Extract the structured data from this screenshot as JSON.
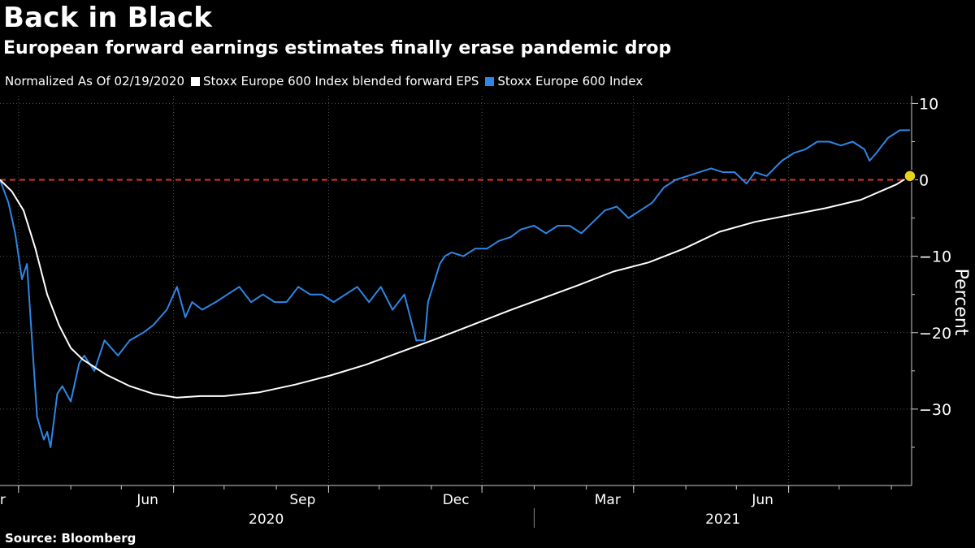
{
  "header": {
    "title": "Back in Black",
    "subtitle": "European forward earnings estimates finally erase pandemic drop"
  },
  "legend": {
    "note": "Normalized As Of 02/19/2020",
    "items": [
      {
        "label": "Stoxx Europe 600 Index blended forward EPS",
        "color": "#ffffff"
      },
      {
        "label": "Stoxx Europe 600 Index",
        "color": "#2e86e6"
      }
    ]
  },
  "footer": {
    "source": "Source: Bloomberg"
  },
  "chart_data": {
    "type": "line",
    "ylabel": "Percent",
    "ylim": [
      -40,
      11
    ],
    "yticks": [
      10,
      0,
      -10,
      -20,
      -30
    ],
    "xlim": [
      "2020-02-19",
      "2021-08-13"
    ],
    "x_month_ticks": [
      {
        "date": "2020-03-01",
        "label": "Mar"
      },
      {
        "date": "2020-06-01",
        "label": "Jun"
      },
      {
        "date": "2020-09-01",
        "label": "Sep"
      },
      {
        "date": "2020-12-01",
        "label": "Dec"
      },
      {
        "date": "2021-03-01",
        "label": "Mar"
      },
      {
        "date": "2021-06-01",
        "label": "Jun"
      }
    ],
    "x_year_labels": [
      {
        "label": "2020",
        "from": "2020-02-19",
        "to": "2020-12-31"
      },
      {
        "label": "2021",
        "from": "2021-01-01",
        "to": "2021-08-13"
      }
    ],
    "reference_line": {
      "y": 0,
      "color": "#e03030"
    },
    "highlight_point": {
      "x": "2021-08-12",
      "y": 0.5,
      "color": "#e8d21a"
    },
    "grid": true,
    "series": [
      {
        "name": "Stoxx Europe 600 Index blended forward EPS",
        "color": "#ffffff",
        "x": [
          "2020-02-19",
          "2020-02-26",
          "2020-03-04",
          "2020-03-11",
          "2020-03-18",
          "2020-03-25",
          "2020-04-01",
          "2020-04-08",
          "2020-04-15",
          "2020-04-22",
          "2020-05-06",
          "2020-05-20",
          "2020-06-03",
          "2020-06-17",
          "2020-07-01",
          "2020-07-22",
          "2020-08-12",
          "2020-09-02",
          "2020-09-23",
          "2020-10-14",
          "2020-11-04",
          "2020-11-25",
          "2020-12-16",
          "2021-01-06",
          "2021-01-27",
          "2021-02-17",
          "2021-03-10",
          "2021-03-31",
          "2021-04-21",
          "2021-05-12",
          "2021-06-02",
          "2021-06-23",
          "2021-07-14",
          "2021-08-04",
          "2021-08-12"
        ],
        "y": [
          0,
          -1.5,
          -4,
          -9,
          -15,
          -19,
          -22,
          -23.5,
          -24.5,
          -25.5,
          -27,
          -28,
          -28.5,
          -28.3,
          -28.3,
          -27.8,
          -26.8,
          -25.6,
          -24.2,
          -22.5,
          -20.8,
          -19,
          -17.2,
          -15.5,
          -13.8,
          -12,
          -10.8,
          -9,
          -6.8,
          -5.5,
          -4.6,
          -3.7,
          -2.6,
          -0.6,
          0.5
        ]
      },
      {
        "name": "Stoxx Europe 600 Index",
        "color": "#2e86e6",
        "x": [
          "2020-02-19",
          "2020-02-24",
          "2020-02-28",
          "2020-03-03",
          "2020-03-06",
          "2020-03-09",
          "2020-03-12",
          "2020-03-16",
          "2020-03-18",
          "2020-03-20",
          "2020-03-24",
          "2020-03-27",
          "2020-04-01",
          "2020-04-06",
          "2020-04-09",
          "2020-04-15",
          "2020-04-21",
          "2020-04-29",
          "2020-05-06",
          "2020-05-14",
          "2020-05-20",
          "2020-05-28",
          "2020-06-03",
          "2020-06-08",
          "2020-06-12",
          "2020-06-18",
          "2020-06-26",
          "2020-07-03",
          "2020-07-10",
          "2020-07-17",
          "2020-07-24",
          "2020-07-31",
          "2020-08-07",
          "2020-08-14",
          "2020-08-21",
          "2020-08-28",
          "2020-09-04",
          "2020-09-11",
          "2020-09-18",
          "2020-09-25",
          "2020-10-02",
          "2020-10-09",
          "2020-10-16",
          "2020-10-23",
          "2020-10-28",
          "2020-10-30",
          "2020-11-06",
          "2020-11-09",
          "2020-11-13",
          "2020-11-20",
          "2020-11-27",
          "2020-12-04",
          "2020-12-11",
          "2020-12-18",
          "2020-12-24",
          "2021-01-01",
          "2021-01-08",
          "2021-01-15",
          "2021-01-22",
          "2021-01-29",
          "2021-02-05",
          "2021-02-12",
          "2021-02-19",
          "2021-02-26",
          "2021-03-05",
          "2021-03-12",
          "2021-03-19",
          "2021-03-26",
          "2021-04-02",
          "2021-04-09",
          "2021-04-16",
          "2021-04-23",
          "2021-04-30",
          "2021-05-07",
          "2021-05-12",
          "2021-05-19",
          "2021-05-28",
          "2021-06-04",
          "2021-06-11",
          "2021-06-18",
          "2021-06-25",
          "2021-07-02",
          "2021-07-09",
          "2021-07-16",
          "2021-07-19",
          "2021-07-23",
          "2021-07-30",
          "2021-08-06",
          "2021-08-12"
        ],
        "y": [
          0,
          -3,
          -7,
          -13,
          -11,
          -21,
          -31,
          -34,
          -33,
          -35,
          -28,
          -27,
          -29,
          -24,
          -23,
          -25,
          -21,
          -23,
          -21,
          -20,
          -19,
          -17,
          -14,
          -18,
          -16,
          -17,
          -16,
          -15,
          -14,
          -16,
          -15,
          -16,
          -16,
          -14,
          -15,
          -15,
          -16,
          -15,
          -14,
          -16,
          -14,
          -17,
          -15,
          -21,
          -21,
          -16,
          -11,
          -10,
          -9.5,
          -10,
          -9,
          -9,
          -8,
          -7.5,
          -6.5,
          -6,
          -7,
          -6,
          -6,
          -7,
          -5.5,
          -4,
          -3.5,
          -5,
          -4,
          -3,
          -1,
          0,
          0.5,
          1,
          1.5,
          1,
          1,
          -0.5,
          1,
          0.5,
          2.5,
          3.5,
          4,
          5,
          5,
          4.5,
          5,
          4,
          2.5,
          3.5,
          5.5,
          6.5,
          6.5
        ]
      }
    ]
  }
}
